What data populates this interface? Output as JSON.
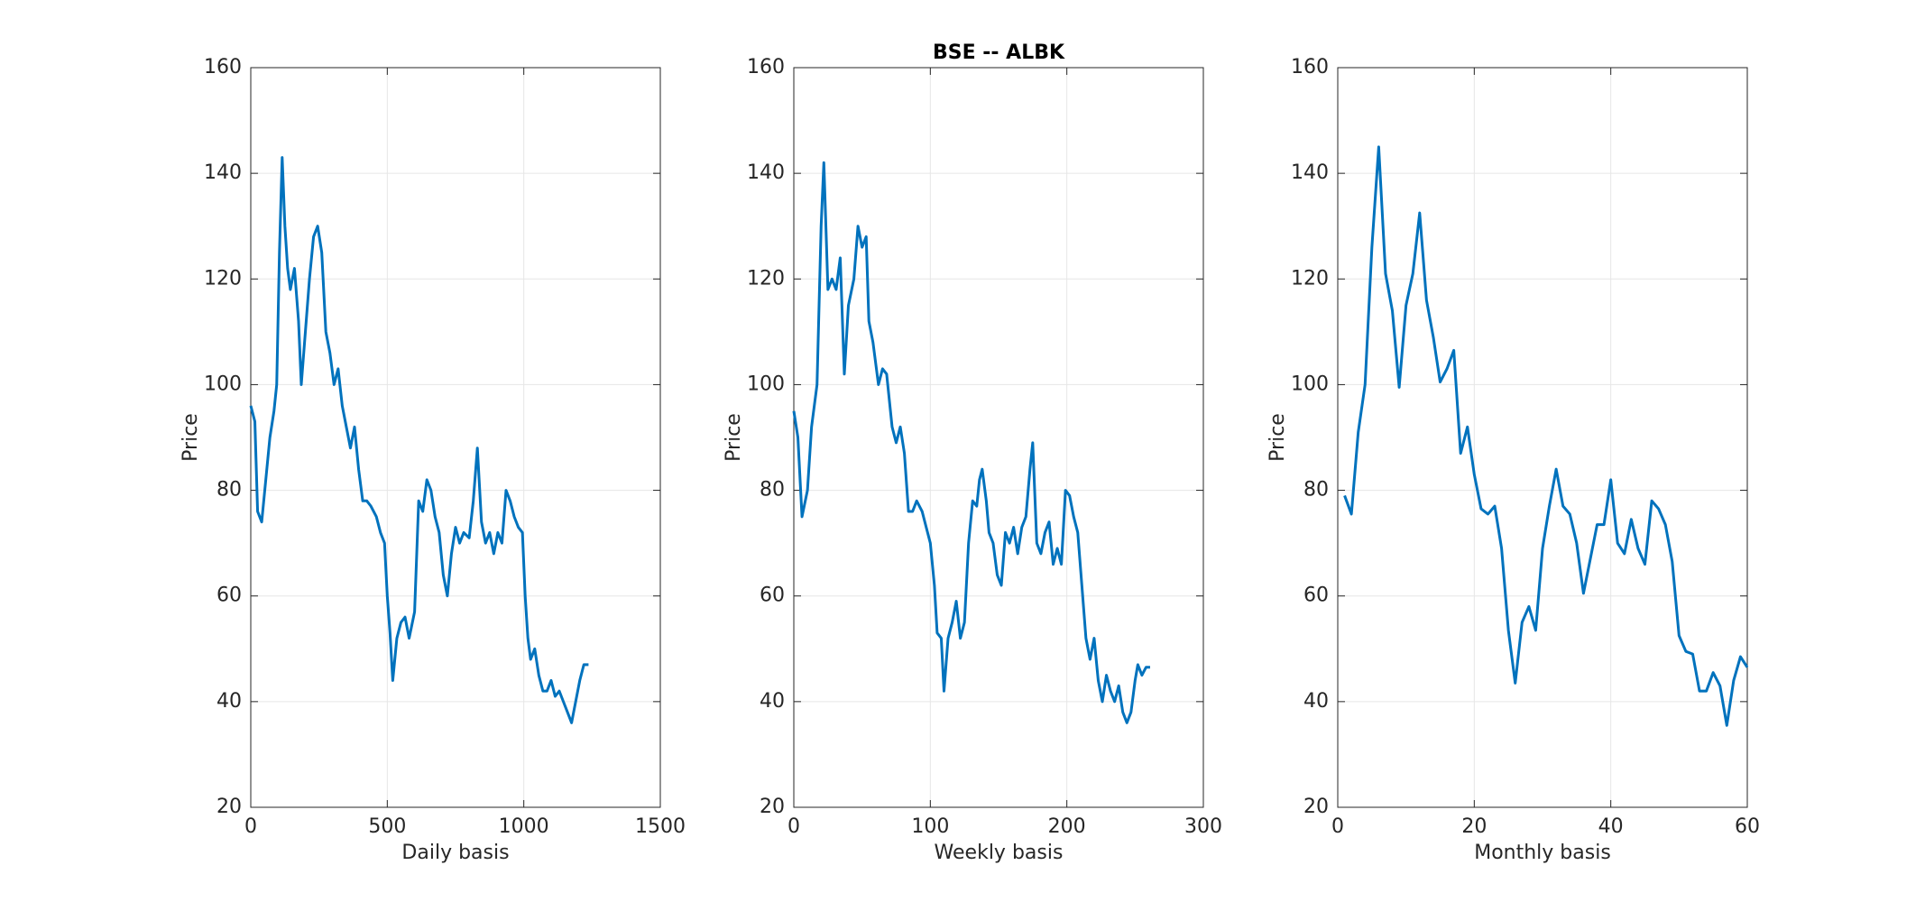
{
  "chart_data": [
    {
      "type": "line",
      "xlabel": "Daily basis",
      "ylabel": "Price",
      "color": "#0072bd",
      "grid": true,
      "xlim": [
        0,
        1500
      ],
      "xticks": [
        0,
        500,
        1000,
        1500
      ],
      "ylim": [
        20,
        160
      ],
      "yticks": [
        20,
        40,
        60,
        80,
        100,
        120,
        140,
        160
      ],
      "x": [
        0,
        15,
        25,
        40,
        55,
        70,
        85,
        95,
        105,
        115,
        125,
        135,
        145,
        160,
        175,
        185,
        200,
        215,
        230,
        245,
        260,
        275,
        290,
        305,
        320,
        335,
        350,
        365,
        380,
        395,
        410,
        425,
        440,
        460,
        475,
        490,
        500,
        510,
        520,
        535,
        550,
        565,
        580,
        600,
        615,
        630,
        645,
        660,
        675,
        690,
        705,
        720,
        735,
        750,
        765,
        780,
        800,
        815,
        830,
        845,
        860,
        875,
        890,
        905,
        920,
        935,
        950,
        965,
        980,
        995,
        1005,
        1015,
        1025,
        1040,
        1055,
        1070,
        1085,
        1100,
        1115,
        1130,
        1145,
        1160,
        1175,
        1190,
        1205,
        1220,
        1237
      ],
      "values": [
        96,
        93,
        76,
        74,
        82,
        90,
        95,
        100,
        125,
        143,
        130,
        122,
        118,
        122,
        112,
        100,
        110,
        120,
        128,
        130,
        125,
        110,
        106,
        100,
        103,
        96,
        92,
        88,
        92,
        84,
        78,
        78,
        77,
        75,
        72,
        70,
        60,
        53,
        44,
        52,
        55,
        56,
        52,
        57,
        78,
        76,
        82,
        80,
        75,
        72,
        64,
        60,
        68,
        73,
        70,
        72,
        71,
        78,
        88,
        74,
        70,
        72,
        68,
        72,
        70,
        80,
        78,
        75,
        73,
        72,
        60,
        52,
        48,
        50,
        45,
        42,
        42,
        44,
        41,
        42,
        40,
        38,
        36,
        40,
        44,
        47,
        47
      ]
    },
    {
      "type": "line",
      "title": "BSE -- ALBK",
      "xlabel": "Weekly basis",
      "ylabel": "Price",
      "color": "#0072bd",
      "grid": true,
      "xlim": [
        0,
        300
      ],
      "xticks": [
        0,
        100,
        200,
        300
      ],
      "ylim": [
        20,
        160
      ],
      "yticks": [
        20,
        40,
        60,
        80,
        100,
        120,
        140,
        160
      ],
      "x": [
        0,
        3,
        6,
        10,
        13,
        17,
        20,
        22,
        25,
        28,
        31,
        34,
        37,
        40,
        44,
        47,
        50,
        53,
        55,
        58,
        62,
        65,
        68,
        72,
        75,
        78,
        81,
        84,
        87,
        90,
        94,
        97,
        100,
        103,
        105,
        108,
        110,
        113,
        116,
        119,
        122,
        125,
        128,
        131,
        134,
        136,
        138,
        141,
        143,
        146,
        149,
        152,
        155,
        158,
        161,
        164,
        167,
        170,
        173,
        175,
        178,
        181,
        184,
        187,
        190,
        193,
        196,
        199,
        202,
        205,
        208,
        211,
        214,
        217,
        220,
        223,
        226,
        229,
        232,
        235,
        238,
        241,
        244,
        247,
        250,
        252,
        255,
        258,
        261
      ],
      "values": [
        95,
        90,
        75,
        80,
        92,
        100,
        130,
        142,
        118,
        120,
        118,
        124,
        102,
        115,
        120,
        130,
        126,
        128,
        112,
        108,
        100,
        103,
        102,
        92,
        89,
        92,
        87,
        76,
        76,
        78,
        76,
        73,
        70,
        62,
        53,
        52,
        42,
        52,
        55,
        59,
        52,
        55,
        70,
        78,
        77,
        82,
        84,
        78,
        72,
        70,
        64,
        62,
        72,
        70,
        73,
        68,
        73,
        75,
        84,
        89,
        70,
        68,
        72,
        74,
        66,
        69,
        66,
        80,
        79,
        75,
        72,
        62,
        52,
        48,
        52,
        44,
        40,
        45,
        42,
        40,
        43,
        38,
        36,
        38,
        44,
        47,
        45,
        46.5,
        46.5
      ]
    },
    {
      "type": "line",
      "xlabel": "Monthly basis",
      "ylabel": "Price",
      "color": "#0072bd",
      "grid": true,
      "xlim": [
        0,
        60
      ],
      "xticks": [
        0,
        20,
        40,
        60
      ],
      "ylim": [
        20,
        160
      ],
      "yticks": [
        20,
        40,
        60,
        80,
        100,
        120,
        140,
        160
      ],
      "x": [
        1,
        2,
        3,
        4,
        5,
        6,
        7,
        8,
        9,
        10,
        11,
        12,
        13,
        14,
        15,
        16,
        17,
        18,
        19,
        20,
        21,
        22,
        23,
        24,
        25,
        26,
        27,
        28,
        29,
        30,
        31,
        32,
        33,
        34,
        35,
        36,
        37,
        38,
        39,
        40,
        41,
        42,
        43,
        44,
        45,
        46,
        47,
        48,
        49,
        50,
        51,
        52,
        53,
        54,
        55,
        56,
        57,
        58,
        59,
        60
      ],
      "values": [
        79,
        75.5,
        91,
        100,
        126,
        145,
        121,
        114,
        99.5,
        115,
        121,
        132.5,
        116,
        109,
        100.5,
        103,
        106.5,
        87,
        92,
        83,
        76.5,
        75.5,
        77,
        69,
        53.5,
        43.5,
        55,
        58,
        53.5,
        69,
        77,
        84,
        77,
        75.5,
        70,
        60.5,
        67,
        73.5,
        73.5,
        82,
        70,
        68,
        74.5,
        69,
        66,
        78,
        76.5,
        73.5,
        66.5,
        52.5,
        49.5,
        49,
        42,
        42,
        45.5,
        43,
        35.5,
        44,
        48.5,
        46.5
      ]
    }
  ]
}
